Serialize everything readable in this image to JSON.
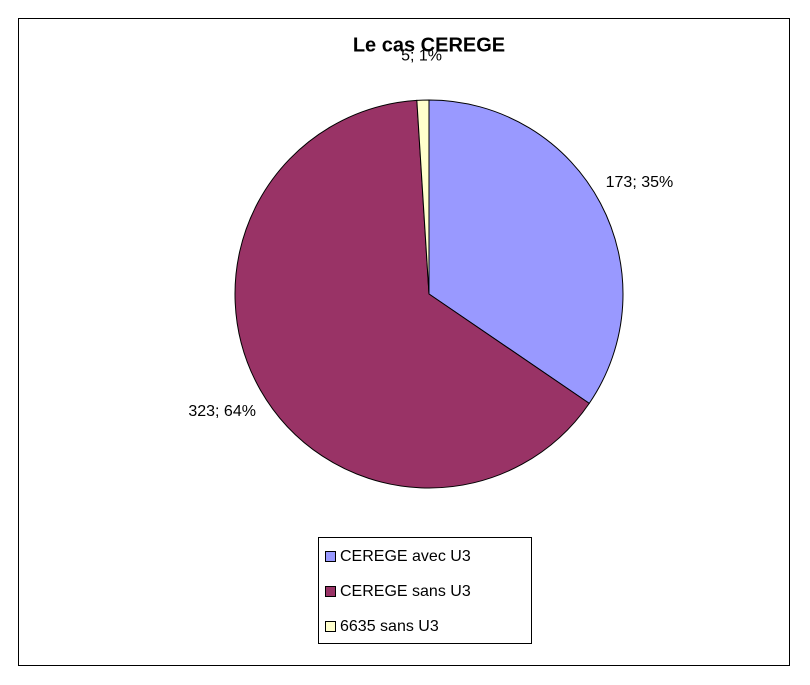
{
  "chart_data": {
    "type": "pie",
    "title": "Le cas CEREGE",
    "categories": [
      "CEREGE avec U3",
      "CEREGE sans U3",
      "6635 sans U3"
    ],
    "values": [
      173,
      323,
      5
    ],
    "value_labels": [
      "173; 35%",
      "323; 64%",
      "5; 1%"
    ],
    "colors": [
      "#9999ff",
      "#993366",
      "#ffffcc"
    ],
    "legend": "bottom"
  }
}
